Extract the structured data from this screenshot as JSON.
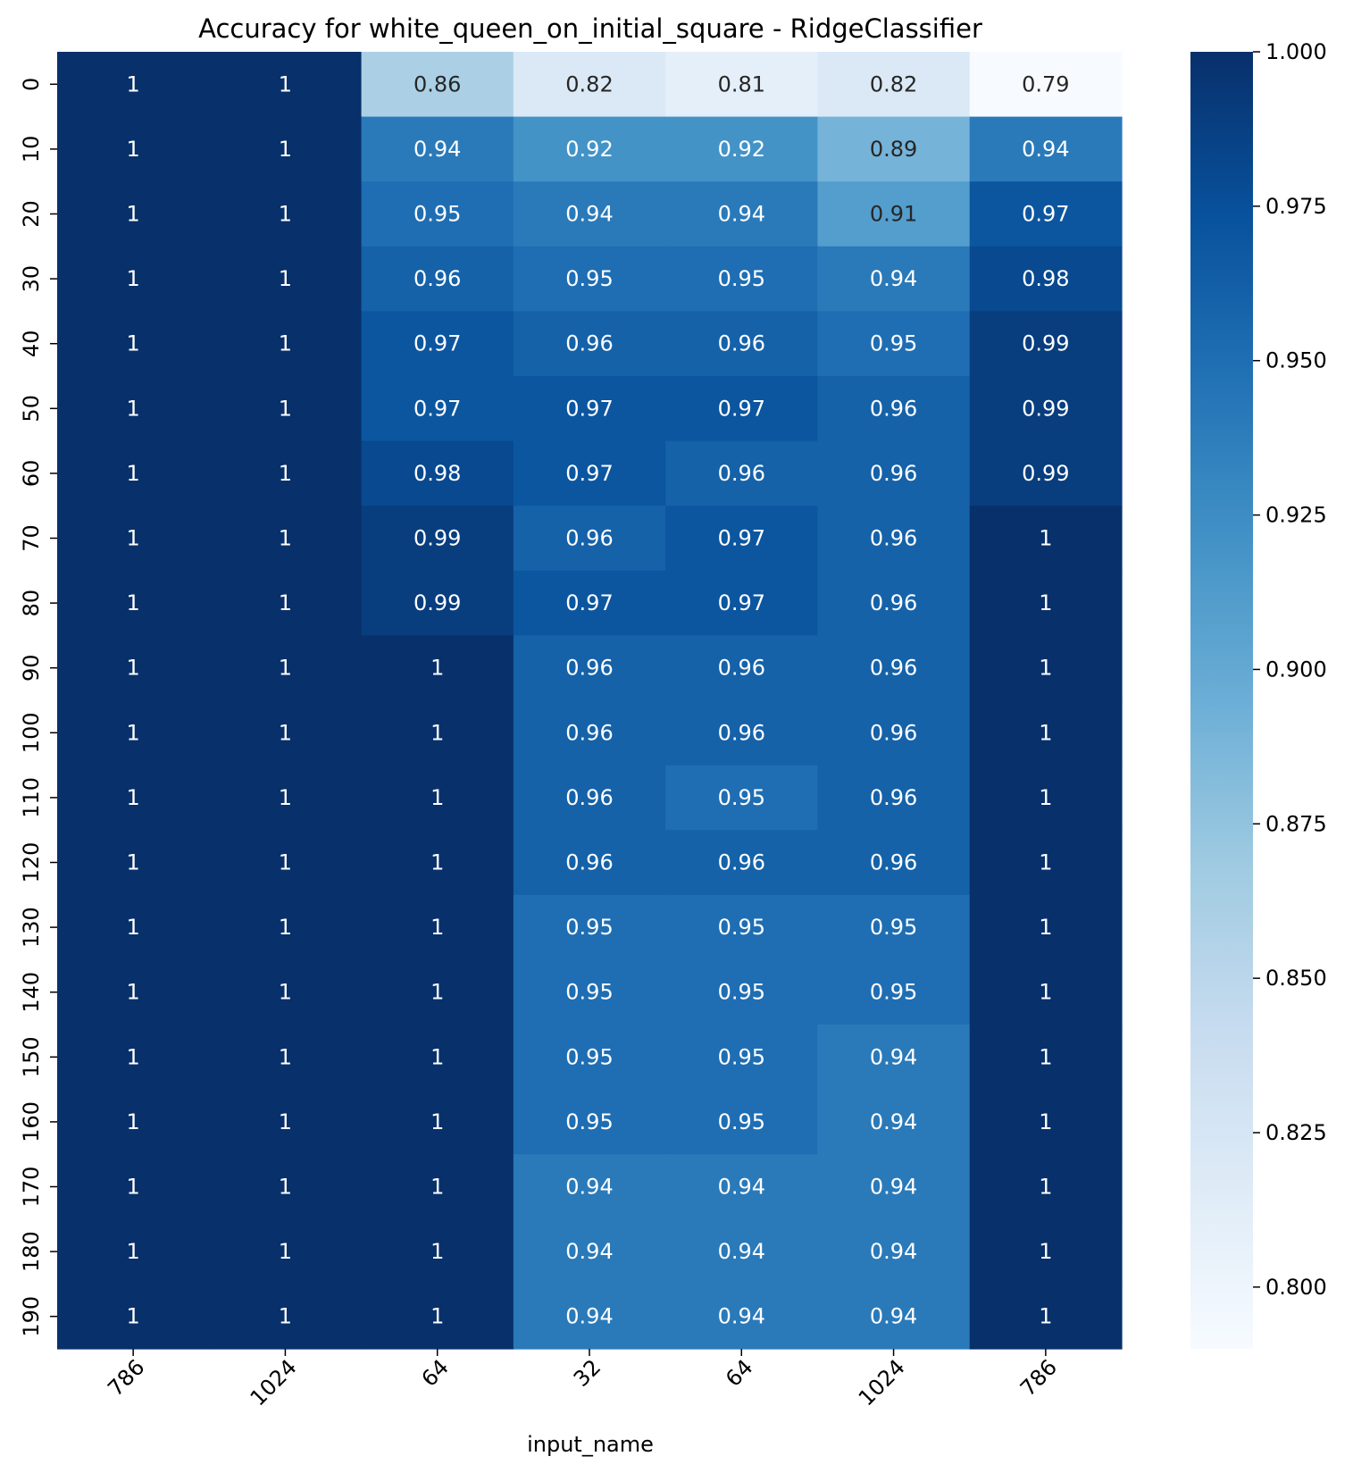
{
  "chart_data": {
    "type": "heatmap",
    "title": "Accuracy for white_queen_on_initial_square - RidgeClassifier",
    "xlabel": "input_name",
    "ylabel": "",
    "x_categories": [
      "786",
      "1024",
      "64",
      "32",
      "64",
      "1024",
      "786"
    ],
    "y_categories": [
      "0",
      "10",
      "20",
      "30",
      "40",
      "50",
      "60",
      "70",
      "80",
      "90",
      "100",
      "110",
      "120",
      "130",
      "140",
      "150",
      "160",
      "170",
      "180",
      "190"
    ],
    "values": [
      [
        1,
        1,
        0.86,
        0.82,
        0.81,
        0.82,
        0.79
      ],
      [
        1,
        1,
        0.94,
        0.92,
        0.92,
        0.89,
        0.94
      ],
      [
        1,
        1,
        0.95,
        0.94,
        0.94,
        0.91,
        0.97
      ],
      [
        1,
        1,
        0.96,
        0.95,
        0.95,
        0.94,
        0.98
      ],
      [
        1,
        1,
        0.97,
        0.96,
        0.96,
        0.95,
        0.99
      ],
      [
        1,
        1,
        0.97,
        0.97,
        0.97,
        0.96,
        0.99
      ],
      [
        1,
        1,
        0.98,
        0.97,
        0.96,
        0.96,
        0.99
      ],
      [
        1,
        1,
        0.99,
        0.96,
        0.97,
        0.96,
        1
      ],
      [
        1,
        1,
        0.99,
        0.97,
        0.97,
        0.96,
        1
      ],
      [
        1,
        1,
        1,
        0.96,
        0.96,
        0.96,
        1
      ],
      [
        1,
        1,
        1,
        0.96,
        0.96,
        0.96,
        1
      ],
      [
        1,
        1,
        1,
        0.96,
        0.95,
        0.96,
        1
      ],
      [
        1,
        1,
        1,
        0.96,
        0.96,
        0.96,
        1
      ],
      [
        1,
        1,
        1,
        0.95,
        0.95,
        0.95,
        1
      ],
      [
        1,
        1,
        1,
        0.95,
        0.95,
        0.95,
        1
      ],
      [
        1,
        1,
        1,
        0.95,
        0.95,
        0.94,
        1
      ],
      [
        1,
        1,
        1,
        0.95,
        0.95,
        0.94,
        1
      ],
      [
        1,
        1,
        1,
        0.94,
        0.94,
        0.94,
        1
      ],
      [
        1,
        1,
        1,
        0.94,
        0.94,
        0.94,
        1
      ],
      [
        1,
        1,
        1,
        0.94,
        0.94,
        0.94,
        1
      ]
    ],
    "colorbar": {
      "min": 0.79,
      "max": 1.0,
      "ticks": [
        "0.800",
        "0.825",
        "0.850",
        "0.875",
        "0.900",
        "0.925",
        "0.950",
        "0.975",
        "1.000"
      ]
    },
    "colormap": "Blues",
    "grid": false,
    "colorbar_placement": "right"
  }
}
